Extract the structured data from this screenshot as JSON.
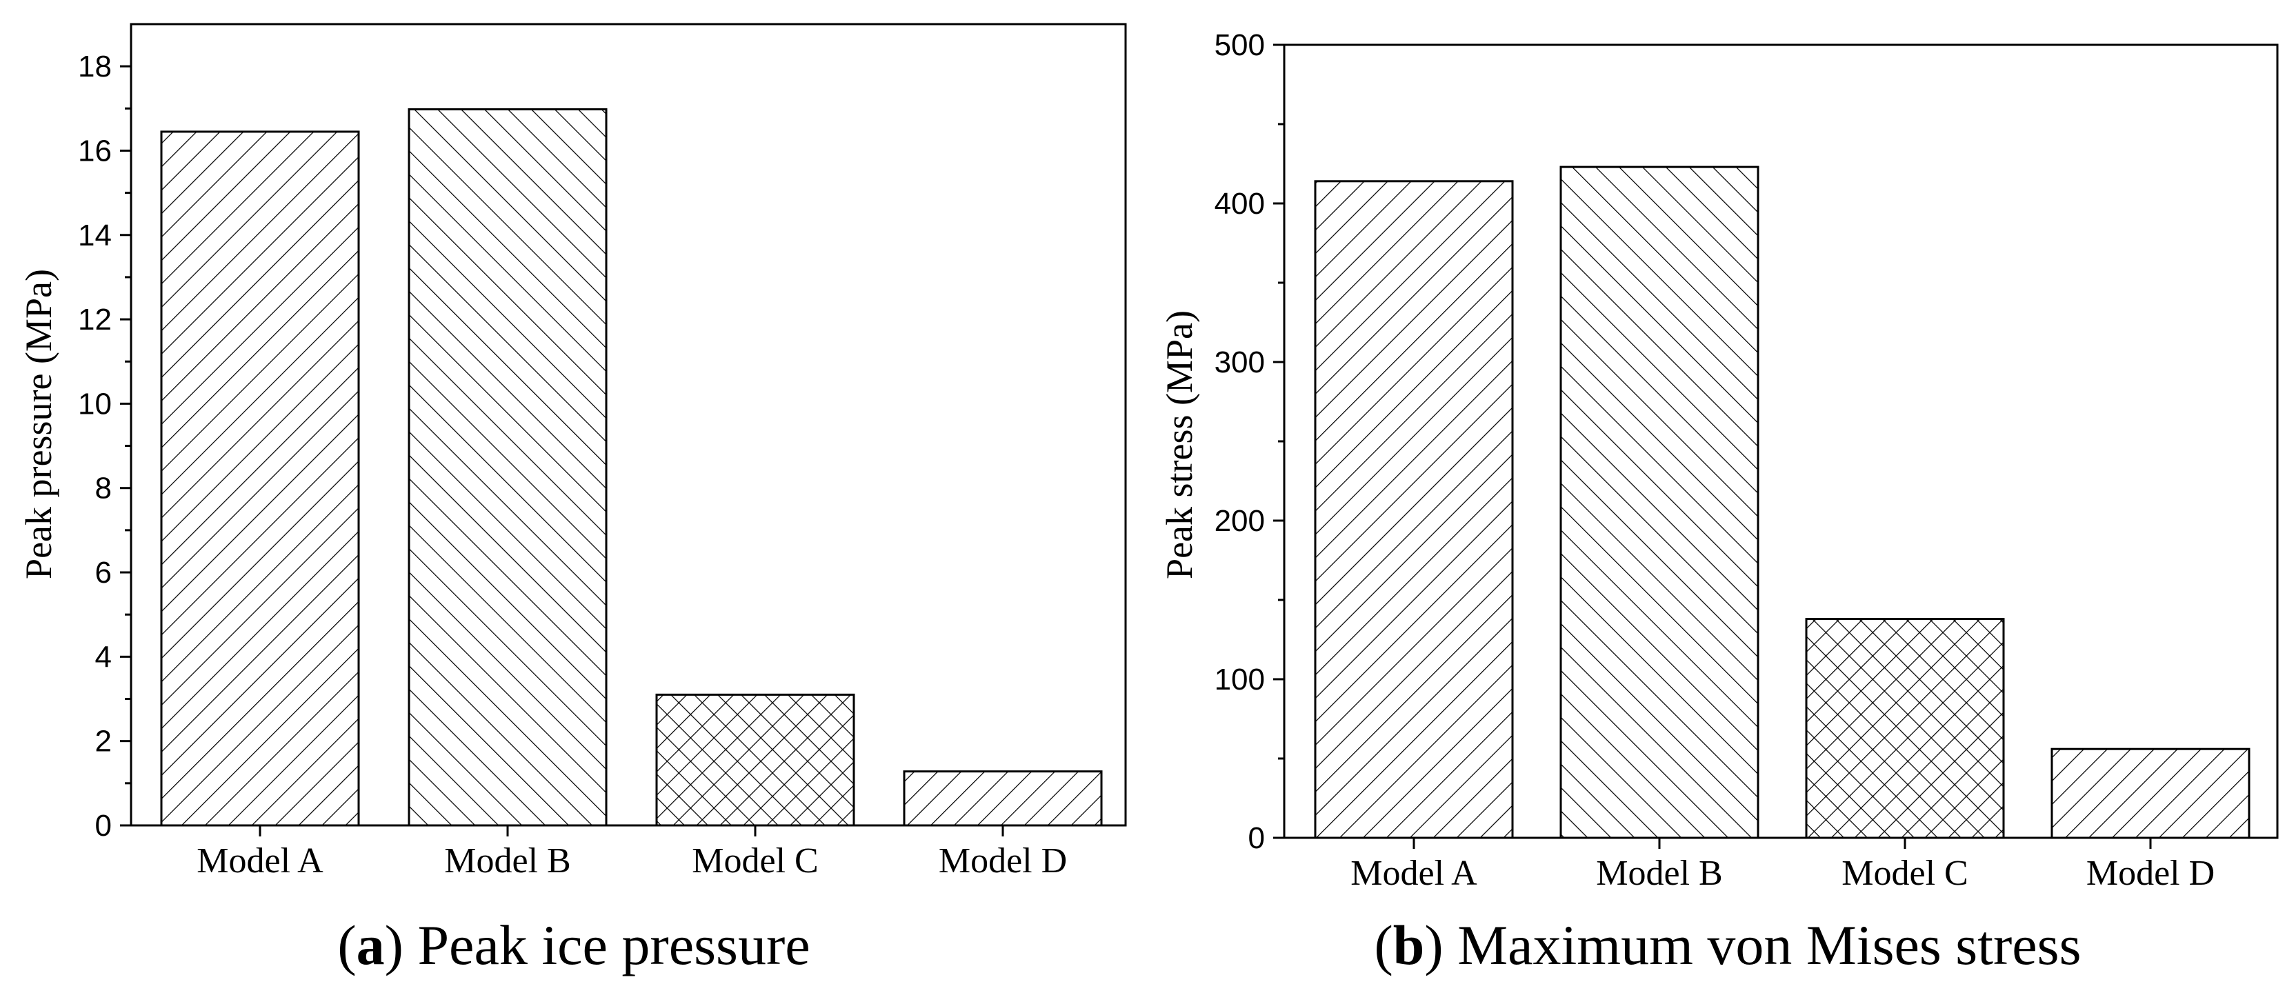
{
  "chart_data": [
    {
      "type": "bar",
      "panel_letter": "a",
      "caption_text": "Peak ice pressure",
      "ylabel": "Peak pressure (MPa)",
      "xlabel": "",
      "ylim": [
        0,
        19
      ],
      "yticks": [
        0,
        2,
        4,
        6,
        8,
        10,
        12,
        14,
        16,
        18
      ],
      "categories": [
        "Model A",
        "Model B",
        "Model C",
        "Model D"
      ],
      "values": [
        16.45,
        16.98,
        3.1,
        1.28
      ],
      "hatches": [
        "forward",
        "backward",
        "cross",
        "forward"
      ],
      "grid": false
    },
    {
      "type": "bar",
      "panel_letter": "b",
      "caption_text": "Maximum von Mises stress",
      "ylabel": "Peak stress (MPa)",
      "xlabel": "",
      "ylim": [
        0,
        500
      ],
      "yticks": [
        0,
        100,
        200,
        300,
        400,
        500
      ],
      "categories": [
        "Model A",
        "Model B",
        "Model C",
        "Model D"
      ],
      "values": [
        414,
        423,
        138,
        56
      ],
      "hatches": [
        "forward",
        "backward",
        "cross",
        "forward"
      ],
      "grid": false
    }
  ]
}
